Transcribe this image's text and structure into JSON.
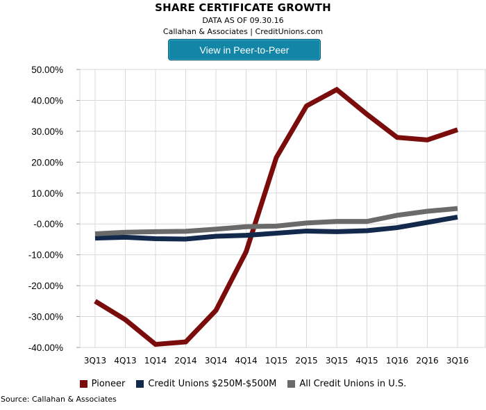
{
  "header": {
    "title": "SHARE CERTIFICATE GROWTH",
    "subtitle": "DATA AS OF 09.30.16",
    "attribution": "Callahan & Associates | CreditUnions.com",
    "peer_button_label": "View in Peer-to-Peer",
    "peer_button_color": "#1386a7"
  },
  "footer": {
    "source": "Source: Callahan & Associates"
  },
  "chart_data": {
    "type": "line",
    "title": "SHARE CERTIFICATE GROWTH",
    "categories": [
      "3Q13",
      "4Q13",
      "1Q14",
      "2Q14",
      "3Q14",
      "4Q14",
      "1Q15",
      "2Q15",
      "3Q15",
      "4Q15",
      "1Q16",
      "2Q16",
      "3Q16"
    ],
    "y_ticks": [
      "50.00%",
      "40.00%",
      "30.00%",
      "20.00%",
      "10.00%",
      "-0.00%",
      "-10.00%",
      "-20.00%",
      "-30.00%",
      "-40.00%"
    ],
    "ylim": [
      -40,
      50
    ],
    "grid": true,
    "legend_position": "bottom",
    "series": [
      {
        "name": "Pioneer",
        "color": "#7a0c0c",
        "values": [
          -25,
          -31,
          -39,
          -38.2,
          -28,
          -9,
          21.5,
          38.2,
          43.5,
          35.5,
          28,
          27.2,
          30.5
        ]
      },
      {
        "name": "Credit Unions $250M-$500M",
        "color": "#12294b",
        "values": [
          -4.6,
          -4.3,
          -4.8,
          -4.9,
          -4,
          -3.7,
          -3,
          -2.3,
          -2.5,
          -2.2,
          -1.2,
          0.5,
          2.2
        ]
      },
      {
        "name": "All Credit Unions in U.S.",
        "color": "#6a6a6a",
        "values": [
          -3.2,
          -2.7,
          -2.5,
          -2.4,
          -1.7,
          -0.9,
          -0.7,
          0.3,
          0.8,
          0.8,
          2.8,
          4.1,
          5.0
        ]
      }
    ]
  }
}
